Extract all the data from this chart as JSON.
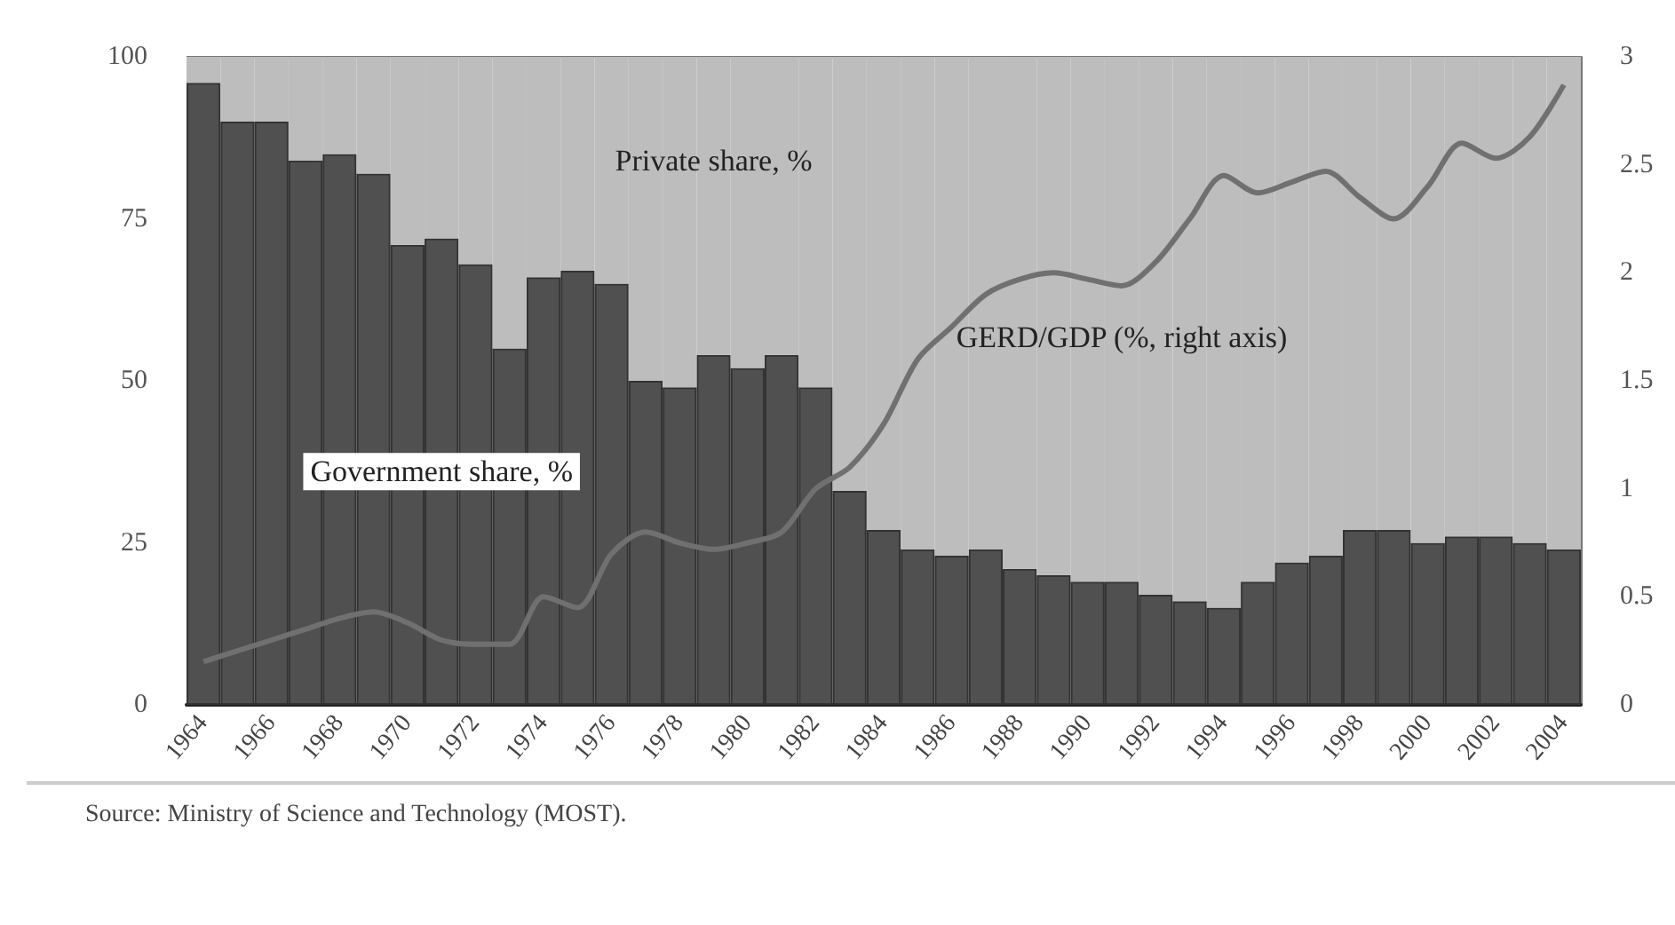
{
  "chart_data": {
    "type": "bar",
    "stacked": true,
    "categories": [
      "1964",
      null,
      "1966",
      null,
      "1968",
      null,
      "1970",
      null,
      "1972",
      null,
      "1974",
      null,
      "1976",
      null,
      "1978",
      null,
      "1980",
      null,
      "1982",
      null,
      "1984",
      null,
      "1986",
      null,
      "1988",
      null,
      "1990",
      null,
      "1992",
      null,
      "1994",
      null,
      "1996",
      null,
      "1998",
      null,
      "2000",
      null,
      "2002",
      null,
      "2004"
    ],
    "series": [
      {
        "name": "Government share, %",
        "color": "#505050",
        "values": [
          96,
          90,
          90,
          84,
          85,
          82,
          71,
          72,
          68,
          55,
          66,
          67,
          65,
          50,
          49,
          54,
          52,
          54,
          49,
          33,
          27,
          24,
          23,
          24,
          21,
          20,
          19,
          19,
          17,
          16,
          15,
          19,
          22,
          23,
          27,
          27,
          25,
          26,
          26,
          25,
          24
        ]
      },
      {
        "name": "Private share, %",
        "color": "#bdbdbd",
        "values": [
          4,
          10,
          10,
          16,
          15,
          18,
          29,
          28,
          32,
          45,
          34,
          33,
          35,
          50,
          51,
          46,
          48,
          46,
          51,
          67,
          73,
          76,
          77,
          76,
          79,
          80,
          81,
          81,
          83,
          84,
          85,
          81,
          78,
          77,
          73,
          73,
          75,
          74,
          74,
          75,
          76
        ]
      },
      {
        "name": "GERD/GDP (%, right axis)",
        "type": "line",
        "axis": "y2",
        "color": "#707070",
        "values": [
          0.2,
          0.25,
          0.3,
          0.35,
          0.4,
          0.43,
          0.38,
          0.3,
          0.28,
          0.28,
          0.5,
          0.45,
          0.7,
          0.8,
          0.75,
          0.72,
          0.75,
          0.8,
          1.0,
          1.1,
          1.3,
          1.6,
          1.75,
          1.9,
          1.97,
          2.0,
          1.97,
          1.94,
          2.05,
          2.25,
          2.45,
          2.37,
          2.42,
          2.47,
          2.35,
          2.25,
          2.4,
          2.6,
          2.53,
          2.63,
          2.87
        ]
      }
    ],
    "ylim": [
      0,
      100
    ],
    "yticks": [
      0,
      25,
      50,
      75,
      100
    ],
    "y2lim": [
      0,
      3
    ],
    "y2ticks": [
      0,
      0.5,
      1,
      1.5,
      2,
      2.5,
      3
    ],
    "grid": false,
    "legend": false,
    "marker": "none",
    "line_style": "solid",
    "annotations": [
      "Source: Ministry of Science and Technology (MOST)."
    ]
  }
}
